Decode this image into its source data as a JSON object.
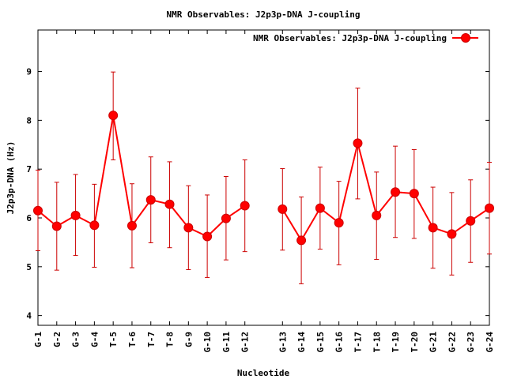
{
  "chart_data": {
    "type": "line",
    "title": "NMR Observables: J2p3p-DNA J-coupling",
    "xlabel": "Nucleotide",
    "ylabel": "J2p3p-DNA (Hz)",
    "ylim": [
      3.8,
      9.85
    ],
    "yticks": [
      4,
      5,
      6,
      7,
      8,
      9
    ],
    "grid": false,
    "legend": "top-right",
    "colors": {
      "series": "#ff0000",
      "errorbar": "#cc0000",
      "axis": "#000000"
    },
    "categories": [
      "G-1",
      "G-2",
      "G-3",
      "G-4",
      "T-5",
      "T-6",
      "T-7",
      "T-8",
      "G-9",
      "G-10",
      "G-11",
      "G-12",
      "G-13",
      "G-14",
      "G-15",
      "G-16",
      "T-17",
      "T-18",
      "T-19",
      "T-20",
      "G-21",
      "G-22",
      "G-23",
      "G-24"
    ],
    "x": [
      1,
      2,
      3,
      4,
      5,
      6,
      7,
      8,
      9,
      10,
      11,
      12,
      14,
      15,
      16,
      17,
      18,
      19,
      20,
      21,
      22,
      23,
      24,
      25
    ],
    "series": [
      {
        "name": "NMR Observables: J2p3p-DNA J-coupling",
        "segments": [
          [
            0,
            11
          ],
          [
            12,
            23
          ]
        ],
        "values": [
          6.15,
          5.83,
          6.05,
          5.85,
          8.1,
          5.84,
          6.37,
          6.28,
          5.8,
          5.62,
          5.99,
          6.25,
          6.18,
          5.54,
          6.2,
          5.9,
          7.53,
          6.05,
          6.53,
          6.5,
          5.8,
          5.67,
          5.94,
          6.2
        ],
        "err_low": [
          5.33,
          4.93,
          5.23,
          4.99,
          7.19,
          4.98,
          5.49,
          5.39,
          4.94,
          4.78,
          5.14,
          5.31,
          5.34,
          4.65,
          5.36,
          5.04,
          6.39,
          5.15,
          5.6,
          5.58,
          4.97,
          4.83,
          5.09,
          5.26
        ],
        "err_high": [
          6.98,
          6.73,
          6.89,
          6.69,
          8.99,
          6.7,
          7.25,
          7.15,
          6.66,
          6.47,
          6.85,
          7.19,
          7.01,
          6.43,
          7.04,
          6.75,
          8.66,
          6.94,
          7.47,
          7.4,
          6.63,
          6.52,
          6.78,
          7.14
        ]
      }
    ]
  }
}
